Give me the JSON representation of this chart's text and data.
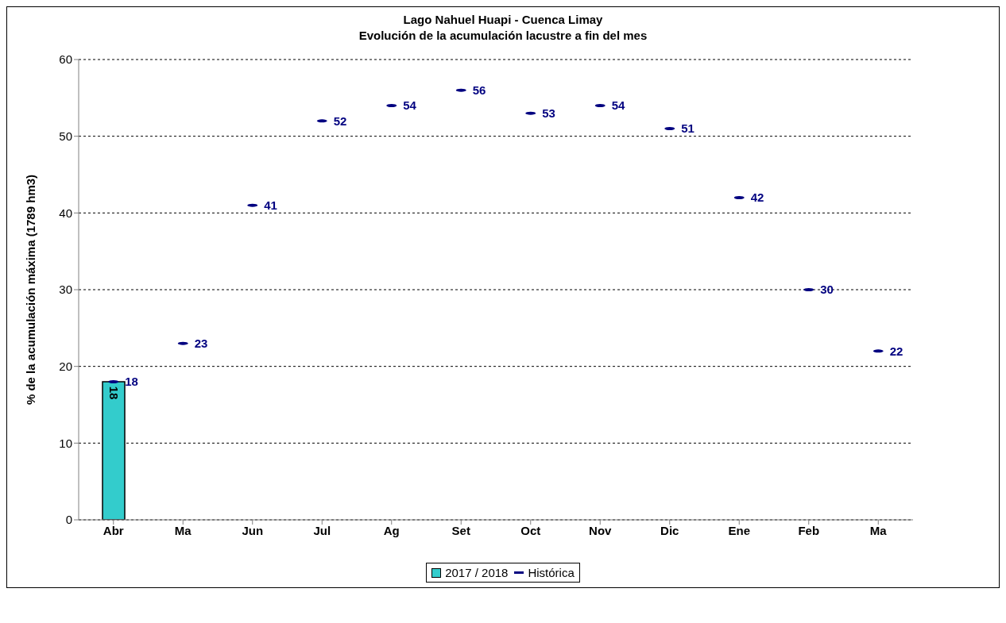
{
  "chart_data": {
    "type": "bar",
    "title": "Lago Nahuel Huapi - Cuenca Limay",
    "subtitle": "Evolución de la acumulación lacustre a fin del mes",
    "ylabel": "% de la acumulación máxima (1789 hm3)",
    "categories": [
      "Abr",
      "Ma",
      "Jun",
      "Jul",
      "Ag",
      "Set",
      "Oct",
      "Nov",
      "Dic",
      "Ene",
      "Feb",
      "Ma"
    ],
    "series": [
      {
        "name": "2017 / 2018",
        "color": "#33cccc",
        "values": [
          18,
          null,
          null,
          null,
          null,
          null,
          null,
          null,
          null,
          null,
          null,
          null
        ]
      },
      {
        "name": "Histórica",
        "type": "scatter",
        "color": "#000080",
        "values": [
          18,
          23,
          41,
          52,
          54,
          56,
          53,
          54,
          51,
          42,
          30,
          22
        ]
      }
    ],
    "ylim": [
      0,
      60
    ],
    "yticks": [
      0,
      10,
      20,
      30,
      40,
      50,
      60
    ],
    "grid": "y",
    "legend": "bottom",
    "data_labels": true
  }
}
